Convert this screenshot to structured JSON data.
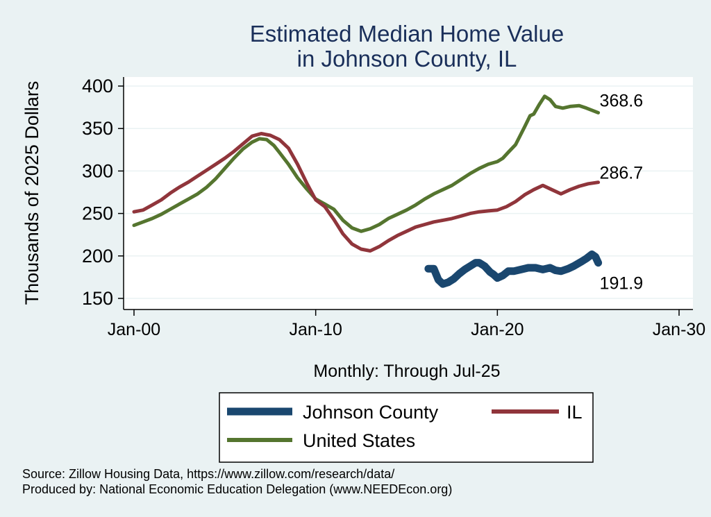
{
  "chart_data": {
    "type": "line",
    "title_lines": [
      "Estimated Median Home Value",
      "in Johnson County, IL"
    ],
    "ylabel": "Thousands of 2025 Dollars",
    "xlabel": "Monthly: Through Jul-25",
    "ylim": [
      150,
      400
    ],
    "yticks": [
      150,
      200,
      250,
      300,
      350,
      400
    ],
    "xlim": [
      2000,
      2030
    ],
    "xticks": [
      {
        "value": 2000,
        "label": "Jan-00"
      },
      {
        "value": 2010,
        "label": "Jan-10"
      },
      {
        "value": 2020,
        "label": "Jan-20"
      },
      {
        "value": 2030,
        "label": "Jan-30"
      }
    ],
    "grid": true,
    "legend_position": "bottom",
    "series": [
      {
        "name": "Johnson County",
        "color": "#1a476f",
        "end_label": "191.9",
        "points": [
          [
            2016.2,
            185
          ],
          [
            2016.5,
            185
          ],
          [
            2016.75,
            172
          ],
          [
            2017.0,
            167
          ],
          [
            2017.3,
            169
          ],
          [
            2017.6,
            173
          ],
          [
            2017.9,
            179
          ],
          [
            2018.2,
            184
          ],
          [
            2018.5,
            188
          ],
          [
            2018.8,
            192
          ],
          [
            2019.0,
            192
          ],
          [
            2019.3,
            188
          ],
          [
            2019.6,
            181
          ],
          [
            2019.8,
            178
          ],
          [
            2020.0,
            174
          ],
          [
            2020.3,
            177
          ],
          [
            2020.6,
            182
          ],
          [
            2020.9,
            182
          ],
          [
            2021.3,
            184
          ],
          [
            2021.7,
            186
          ],
          [
            2022.1,
            186
          ],
          [
            2022.5,
            184
          ],
          [
            2022.9,
            186
          ],
          [
            2023.2,
            183
          ],
          [
            2023.5,
            182
          ],
          [
            2023.9,
            185
          ],
          [
            2024.2,
            188
          ],
          [
            2024.6,
            193
          ],
          [
            2024.9,
            197
          ],
          [
            2025.2,
            202
          ],
          [
            2025.4,
            199
          ],
          [
            2025.55,
            191.9
          ]
        ]
      },
      {
        "name": "IL",
        "color": "#90353b",
        "end_label": "286.7",
        "points": [
          [
            2000.0,
            252
          ],
          [
            2000.5,
            254
          ],
          [
            2001.0,
            260
          ],
          [
            2001.5,
            266
          ],
          [
            2002.0,
            274
          ],
          [
            2002.5,
            281
          ],
          [
            2003.0,
            287
          ],
          [
            2003.5,
            294
          ],
          [
            2004.0,
            301
          ],
          [
            2004.5,
            308
          ],
          [
            2005.0,
            315
          ],
          [
            2005.5,
            323
          ],
          [
            2006.0,
            332
          ],
          [
            2006.5,
            341
          ],
          [
            2007.0,
            344
          ],
          [
            2007.5,
            342
          ],
          [
            2008.0,
            337
          ],
          [
            2008.5,
            327
          ],
          [
            2009.0,
            308
          ],
          [
            2009.5,
            286
          ],
          [
            2010.0,
            266
          ],
          [
            2010.5,
            258
          ],
          [
            2011.0,
            243
          ],
          [
            2011.5,
            226
          ],
          [
            2012.0,
            214
          ],
          [
            2012.5,
            208
          ],
          [
            2013.0,
            206
          ],
          [
            2013.5,
            211
          ],
          [
            2014.0,
            218
          ],
          [
            2014.5,
            224
          ],
          [
            2015.0,
            229
          ],
          [
            2015.5,
            234
          ],
          [
            2016.0,
            237
          ],
          [
            2016.5,
            240
          ],
          [
            2017.0,
            242
          ],
          [
            2017.5,
            244
          ],
          [
            2018.0,
            247
          ],
          [
            2018.5,
            250
          ],
          [
            2019.0,
            252
          ],
          [
            2019.5,
            253
          ],
          [
            2020.0,
            254
          ],
          [
            2020.5,
            258
          ],
          [
            2021.0,
            264
          ],
          [
            2021.5,
            272
          ],
          [
            2022.0,
            278
          ],
          [
            2022.5,
            283
          ],
          [
            2023.0,
            278
          ],
          [
            2023.5,
            273
          ],
          [
            2024.0,
            278
          ],
          [
            2024.5,
            282
          ],
          [
            2025.0,
            285
          ],
          [
            2025.55,
            286.7
          ]
        ]
      },
      {
        "name": "United States",
        "color": "#55752f",
        "end_label": "368.6",
        "points": [
          [
            2000.0,
            236
          ],
          [
            2000.5,
            240
          ],
          [
            2001.0,
            244
          ],
          [
            2001.5,
            249
          ],
          [
            2002.0,
            255
          ],
          [
            2002.5,
            261
          ],
          [
            2003.0,
            267
          ],
          [
            2003.5,
            273
          ],
          [
            2004.0,
            281
          ],
          [
            2004.5,
            291
          ],
          [
            2005.0,
            303
          ],
          [
            2005.5,
            315
          ],
          [
            2006.0,
            326
          ],
          [
            2006.5,
            334
          ],
          [
            2006.9,
            338
          ],
          [
            2007.3,
            337
          ],
          [
            2007.7,
            330
          ],
          [
            2008.0,
            322
          ],
          [
            2008.5,
            308
          ],
          [
            2009.0,
            292
          ],
          [
            2009.5,
            279
          ],
          [
            2010.0,
            267
          ],
          [
            2010.5,
            261
          ],
          [
            2011.0,
            255
          ],
          [
            2011.5,
            242
          ],
          [
            2012.0,
            233
          ],
          [
            2012.5,
            229
          ],
          [
            2013.0,
            232
          ],
          [
            2013.5,
            237
          ],
          [
            2014.0,
            244
          ],
          [
            2014.5,
            249
          ],
          [
            2015.0,
            254
          ],
          [
            2015.5,
            260
          ],
          [
            2016.0,
            267
          ],
          [
            2016.5,
            273
          ],
          [
            2017.0,
            278
          ],
          [
            2017.5,
            283
          ],
          [
            2018.0,
            290
          ],
          [
            2018.5,
            297
          ],
          [
            2019.0,
            303
          ],
          [
            2019.5,
            308
          ],
          [
            2020.0,
            311
          ],
          [
            2020.3,
            315
          ],
          [
            2020.6,
            322
          ],
          [
            2021.0,
            331
          ],
          [
            2021.5,
            352
          ],
          [
            2021.8,
            365
          ],
          [
            2022.0,
            367
          ],
          [
            2022.3,
            378
          ],
          [
            2022.6,
            388
          ],
          [
            2022.9,
            384
          ],
          [
            2023.2,
            376
          ],
          [
            2023.6,
            374
          ],
          [
            2024.0,
            376
          ],
          [
            2024.5,
            377
          ],
          [
            2024.9,
            374
          ],
          [
            2025.55,
            368.6
          ]
        ]
      }
    ]
  },
  "source_note": "Source: Zillow Housing Data, https://www.zillow.com/research/data/",
  "producer_note": "Produced by: National Economic Education Delegation (www.NEEDEcon.org)"
}
